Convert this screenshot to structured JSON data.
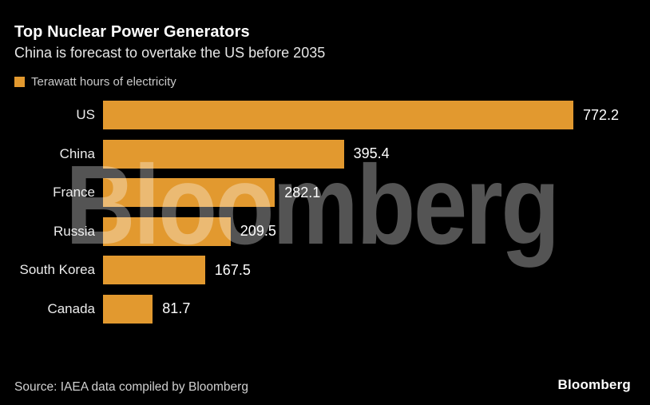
{
  "header": {
    "title": "Top Nuclear Power Generators",
    "subtitle": "China is forecast to overtake the US before 2035"
  },
  "legend": {
    "label": "Terawatt hours of electricity",
    "swatch_color": "#E2992F"
  },
  "chart_data": {
    "type": "bar",
    "orientation": "horizontal",
    "categories": [
      "US",
      "China",
      "France",
      "Russia",
      "South Korea",
      "Canada"
    ],
    "values": [
      772.2,
      395.4,
      282.1,
      209.5,
      167.5,
      81.7
    ],
    "value_labels": [
      "772.2",
      "395.4",
      "282.1",
      "209.5",
      "167.5",
      "81.7"
    ],
    "title": "Top Nuclear Power Generators",
    "subtitle": "China is forecast to overtake the US before 2035",
    "series_label": "Terawatt hours of electricity",
    "xlim": [
      0,
      772.2
    ],
    "grid": false,
    "legend_position": "top-left",
    "bar_color": "#E2992F",
    "value_label_color": "#FFFFFF",
    "category_label_color": "#ECECEC"
  },
  "watermark": {
    "text": "Bloomberg"
  },
  "footer": {
    "source": "Source: IAEA data compiled by Bloomberg",
    "logo": "Bloomberg"
  },
  "colors": {
    "background": "#000000",
    "title": "#FFFFFF",
    "subtitle": "#E6E6E6",
    "legend_text": "#C9C9C9",
    "source_text": "#D0D0D0",
    "watermark": "rgba(255,255,255,0.33)"
  }
}
